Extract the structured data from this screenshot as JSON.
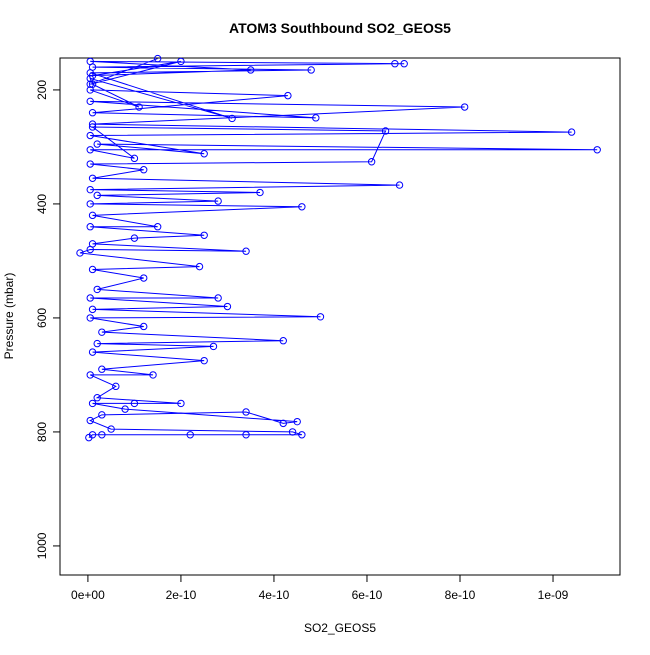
{
  "chart_data": {
    "type": "line",
    "title": "ATOM3 Southbound SO2_GEOS5",
    "xlabel": "SO2_GEOS5",
    "ylabel": "Pressure (mbar)",
    "color": "#0000ff",
    "markers": true,
    "y_reversed": true,
    "xlim": [
      -6e-11,
      1.144e-09
    ],
    "ylim": [
      144,
      1051
    ],
    "xticks": [
      {
        "value": 0,
        "label": "0e+00"
      },
      {
        "value": 2e-10,
        "label": "2e-10"
      },
      {
        "value": 4e-10,
        "label": "4e-10"
      },
      {
        "value": 6e-10,
        "label": "6e-10"
      },
      {
        "value": 8e-10,
        "label": "8e-10"
      },
      {
        "value": 1e-09,
        "label": "1e-09"
      }
    ],
    "yticks": [
      200,
      400,
      600,
      800,
      1000
    ],
    "x": [
      2e-12,
      1e-11,
      3e-11,
      2.2e-10,
      3.4e-10,
      4.6e-10,
      4.4e-10,
      5e-11,
      5e-12,
      3e-11,
      3.4e-10,
      4.2e-10,
      4.5e-10,
      8e-11,
      1e-11,
      1e-10,
      2e-10,
      2e-11,
      6e-11,
      5e-12,
      1.4e-10,
      3e-11,
      2.5e-10,
      1e-11,
      2.7e-10,
      2e-11,
      4.2e-10,
      3e-11,
      1.2e-10,
      5e-12,
      5e-10,
      1e-11,
      3e-10,
      5e-12,
      2.8e-10,
      2e-11,
      1.2e-10,
      1e-11,
      2.4e-10,
      -1.7e-11,
      5e-12,
      3.4e-10,
      1e-11,
      1e-10,
      2.5e-10,
      5e-12,
      1.5e-10,
      1e-11,
      4.6e-10,
      5e-12,
      2.8e-10,
      2e-11,
      3.7e-10,
      5e-12,
      6.7e-10,
      1e-11,
      1.2e-10,
      5e-12,
      6.1e-10,
      6.4e-10,
      1e-11,
      1e-10,
      5e-12,
      1.095e-09,
      2e-11,
      2.5e-10,
      5e-12,
      1.04e-09,
      1e-11,
      8.1e-10,
      5e-12,
      4.9e-10,
      1e-11,
      4.3e-10,
      5e-12,
      1.1e-10,
      1e-11,
      5e-12,
      3.1e-10,
      5e-12,
      4.8e-10,
      1e-11,
      6.6e-10,
      6.8e-10,
      5e-12,
      3.5e-10,
      1e-11,
      2e-10,
      5e-12,
      1.5e-10
    ],
    "y": [
      810,
      805,
      805,
      805,
      805,
      805,
      800,
      795,
      780,
      770,
      765,
      785,
      782,
      760,
      750,
      750,
      750,
      740,
      720,
      700,
      700,
      690,
      675,
      660,
      650,
      645,
      640,
      625,
      615,
      600,
      598,
      585,
      580,
      565,
      565,
      550,
      530,
      515,
      510,
      486,
      480,
      483,
      470,
      460,
      455,
      440,
      440,
      420,
      405,
      400,
      395,
      385,
      380,
      375,
      367,
      355,
      340,
      330,
      326,
      272,
      265,
      320,
      305,
      305,
      295,
      312,
      280,
      274,
      260,
      230,
      220,
      249,
      240,
      210,
      200,
      230,
      190,
      180,
      250,
      170,
      165,
      160,
      154,
      154,
      150,
      165,
      175,
      150,
      190,
      145
    ]
  }
}
